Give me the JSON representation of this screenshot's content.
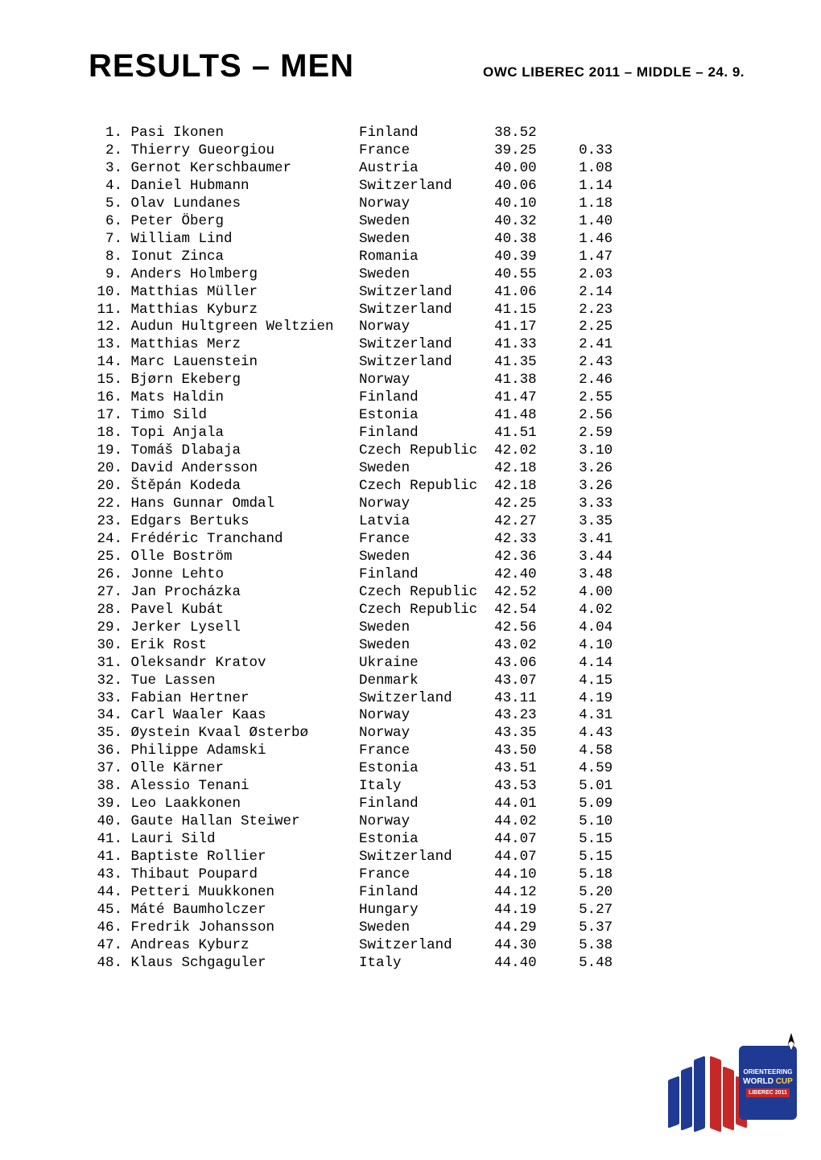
{
  "header": {
    "title": "RESULTS – MEN",
    "subtitle": "OWC LIBEREC 2011 – MIDDLE – 24. 9."
  },
  "columns": {
    "rank_w": 4,
    "name_w": 27,
    "country_w": 16,
    "time_w": 5,
    "gap_w": 9
  },
  "results": [
    {
      "rank": "1.",
      "name": "Pasi Ikonen",
      "country": "Finland",
      "time": "38.52",
      "gap": ""
    },
    {
      "rank": "2.",
      "name": "Thierry Gueorgiou",
      "country": "France",
      "time": "39.25",
      "gap": "0.33"
    },
    {
      "rank": "3.",
      "name": "Gernot Kerschbaumer",
      "country": "Austria",
      "time": "40.00",
      "gap": "1.08"
    },
    {
      "rank": "4.",
      "name": "Daniel Hubmann",
      "country": "Switzerland",
      "time": "40.06",
      "gap": "1.14"
    },
    {
      "rank": "5.",
      "name": "Olav Lundanes",
      "country": "Norway",
      "time": "40.10",
      "gap": "1.18"
    },
    {
      "rank": "6.",
      "name": "Peter Öberg",
      "country": "Sweden",
      "time": "40.32",
      "gap": "1.40"
    },
    {
      "rank": "7.",
      "name": "William Lind",
      "country": "Sweden",
      "time": "40.38",
      "gap": "1.46"
    },
    {
      "rank": "8.",
      "name": "Ionut Zinca",
      "country": "Romania",
      "time": "40.39",
      "gap": "1.47"
    },
    {
      "rank": "9.",
      "name": "Anders Holmberg",
      "country": "Sweden",
      "time": "40.55",
      "gap": "2.03"
    },
    {
      "rank": "10.",
      "name": "Matthias Müller",
      "country": "Switzerland",
      "time": "41.06",
      "gap": "2.14"
    },
    {
      "rank": "11.",
      "name": "Matthias Kyburz",
      "country": "Switzerland",
      "time": "41.15",
      "gap": "2.23"
    },
    {
      "rank": "12.",
      "name": "Audun Hultgreen Weltzien",
      "country": "Norway",
      "time": "41.17",
      "gap": "2.25"
    },
    {
      "rank": "13.",
      "name": "Matthias Merz",
      "country": "Switzerland",
      "time": "41.33",
      "gap": "2.41"
    },
    {
      "rank": "14.",
      "name": "Marc Lauenstein",
      "country": "Switzerland",
      "time": "41.35",
      "gap": "2.43"
    },
    {
      "rank": "15.",
      "name": "Bjørn Ekeberg",
      "country": "Norway",
      "time": "41.38",
      "gap": "2.46"
    },
    {
      "rank": "16.",
      "name": "Mats Haldin",
      "country": "Finland",
      "time": "41.47",
      "gap": "2.55"
    },
    {
      "rank": "17.",
      "name": "Timo Sild",
      "country": "Estonia",
      "time": "41.48",
      "gap": "2.56"
    },
    {
      "rank": "18.",
      "name": "Topi Anjala",
      "country": "Finland",
      "time": "41.51",
      "gap": "2.59"
    },
    {
      "rank": "19.",
      "name": "Tomáš Dlabaja",
      "country": "Czech Republic",
      "time": "42.02",
      "gap": "3.10"
    },
    {
      "rank": "20.",
      "name": "David Andersson",
      "country": "Sweden",
      "time": "42.18",
      "gap": "3.26"
    },
    {
      "rank": "20.",
      "name": "Štěpán Kodeda",
      "country": "Czech Republic",
      "time": "42.18",
      "gap": "3.26"
    },
    {
      "rank": "22.",
      "name": "Hans Gunnar Omdal",
      "country": "Norway",
      "time": "42.25",
      "gap": "3.33"
    },
    {
      "rank": "23.",
      "name": "Edgars Bertuks",
      "country": "Latvia",
      "time": "42.27",
      "gap": "3.35"
    },
    {
      "rank": "24.",
      "name": "Frédéric Tranchand",
      "country": "France",
      "time": "42.33",
      "gap": "3.41"
    },
    {
      "rank": "25.",
      "name": "Olle Boström",
      "country": "Sweden",
      "time": "42.36",
      "gap": "3.44"
    },
    {
      "rank": "26.",
      "name": "Jonne Lehto",
      "country": "Finland",
      "time": "42.40",
      "gap": "3.48"
    },
    {
      "rank": "27.",
      "name": "Jan Procházka",
      "country": "Czech Republic",
      "time": "42.52",
      "gap": "4.00"
    },
    {
      "rank": "28.",
      "name": "Pavel Kubát",
      "country": "Czech Republic",
      "time": "42.54",
      "gap": "4.02"
    },
    {
      "rank": "29.",
      "name": "Jerker Lysell",
      "country": "Sweden",
      "time": "42.56",
      "gap": "4.04"
    },
    {
      "rank": "30.",
      "name": "Erik Rost",
      "country": "Sweden",
      "time": "43.02",
      "gap": "4.10"
    },
    {
      "rank": "31.",
      "name": "Oleksandr Kratov",
      "country": "Ukraine",
      "time": "43.06",
      "gap": "4.14"
    },
    {
      "rank": "32.",
      "name": "Tue Lassen",
      "country": "Denmark",
      "time": "43.07",
      "gap": "4.15"
    },
    {
      "rank": "33.",
      "name": "Fabian Hertner",
      "country": "Switzerland",
      "time": "43.11",
      "gap": "4.19"
    },
    {
      "rank": "34.",
      "name": "Carl Waaler Kaas",
      "country": "Norway",
      "time": "43.23",
      "gap": "4.31"
    },
    {
      "rank": "35.",
      "name": "Øystein Kvaal Østerbø",
      "country": "Norway",
      "time": "43.35",
      "gap": "4.43"
    },
    {
      "rank": "36.",
      "name": "Philippe Adamski",
      "country": "France",
      "time": "43.50",
      "gap": "4.58"
    },
    {
      "rank": "37.",
      "name": "Olle Kärner",
      "country": "Estonia",
      "time": "43.51",
      "gap": "4.59"
    },
    {
      "rank": "38.",
      "name": "Alessio Tenani",
      "country": "Italy",
      "time": "43.53",
      "gap": "5.01"
    },
    {
      "rank": "39.",
      "name": "Leo Laakkonen",
      "country": "Finland",
      "time": "44.01",
      "gap": "5.09"
    },
    {
      "rank": "40.",
      "name": "Gaute Hallan Steiwer",
      "country": "Norway",
      "time": "44.02",
      "gap": "5.10"
    },
    {
      "rank": "41.",
      "name": "Lauri Sild",
      "country": "Estonia",
      "time": "44.07",
      "gap": "5.15"
    },
    {
      "rank": "41.",
      "name": "Baptiste Rollier",
      "country": "Switzerland",
      "time": "44.07",
      "gap": "5.15"
    },
    {
      "rank": "43.",
      "name": "Thibaut Poupard",
      "country": "France",
      "time": "44.10",
      "gap": "5.18"
    },
    {
      "rank": "44.",
      "name": "Petteri Muukkonen",
      "country": "Finland",
      "time": "44.12",
      "gap": "5.20"
    },
    {
      "rank": "45.",
      "name": "Máté Baumholczer",
      "country": "Hungary",
      "time": "44.19",
      "gap": "5.27"
    },
    {
      "rank": "46.",
      "name": "Fredrik Johansson",
      "country": "Sweden",
      "time": "44.29",
      "gap": "5.37"
    },
    {
      "rank": "47.",
      "name": "Andreas Kyburz",
      "country": "Switzerland",
      "time": "44.30",
      "gap": "5.38"
    },
    {
      "rank": "48.",
      "name": "Klaus Schgaguler",
      "country": "Italy",
      "time": "44.40",
      "gap": "5.48"
    }
  ],
  "badge": {
    "line1": "ORIENTEERING",
    "line2a": "WORLD ",
    "line2b": "CUP",
    "line3": "LIBEREC 2011"
  }
}
